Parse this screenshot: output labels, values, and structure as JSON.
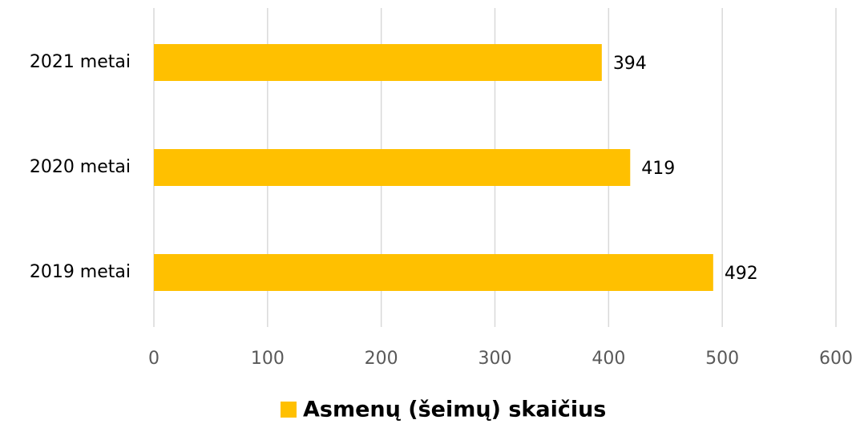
{
  "chart_data": {
    "type": "hbar",
    "categories": [
      "2021 metai",
      "2020 metai",
      "2019 metai"
    ],
    "series": [
      {
        "name": "Asmenų (šeimų) skaičius",
        "color": "#ffc000",
        "values": [
          394,
          419,
          492
        ]
      }
    ],
    "xlim": [
      0,
      600
    ],
    "xticks": [
      0,
      100,
      200,
      300,
      400,
      500,
      600
    ],
    "grid": true,
    "legend": "bottom"
  }
}
